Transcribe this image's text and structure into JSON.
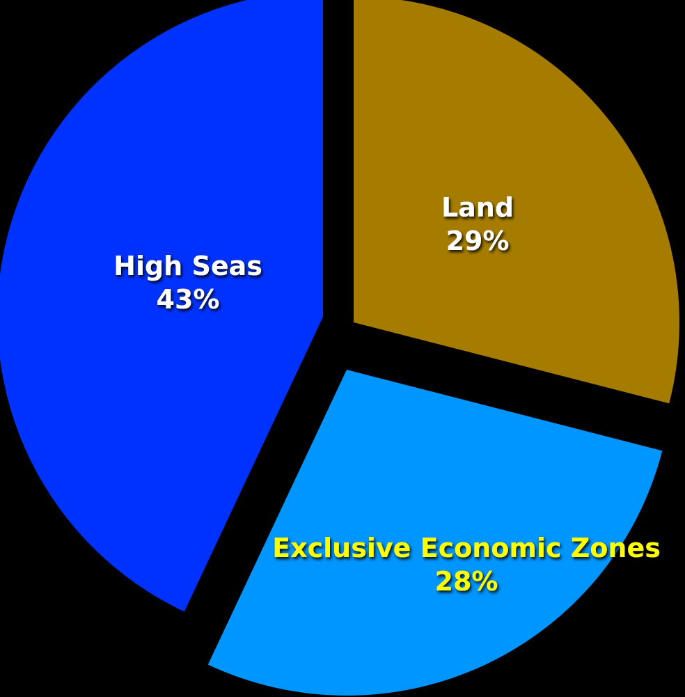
{
  "chart_data": {
    "type": "pie",
    "background": "#000000",
    "start_angle_deg": 0,
    "direction": "clockwise",
    "exploded": true,
    "slices": [
      {
        "name": "Land",
        "value_label": "29%",
        "value": 29,
        "color": "#a67c00",
        "label_color": "#ffffff"
      },
      {
        "name": "Exclusive Economic Zones",
        "value_label": "28%",
        "value": 28,
        "color": "#0096ff",
        "label_color": "#ffff00"
      },
      {
        "name": "High Seas",
        "value_label": "43%",
        "value": 43,
        "color": "#0032ff",
        "label_color": "#ffffff"
      }
    ]
  }
}
